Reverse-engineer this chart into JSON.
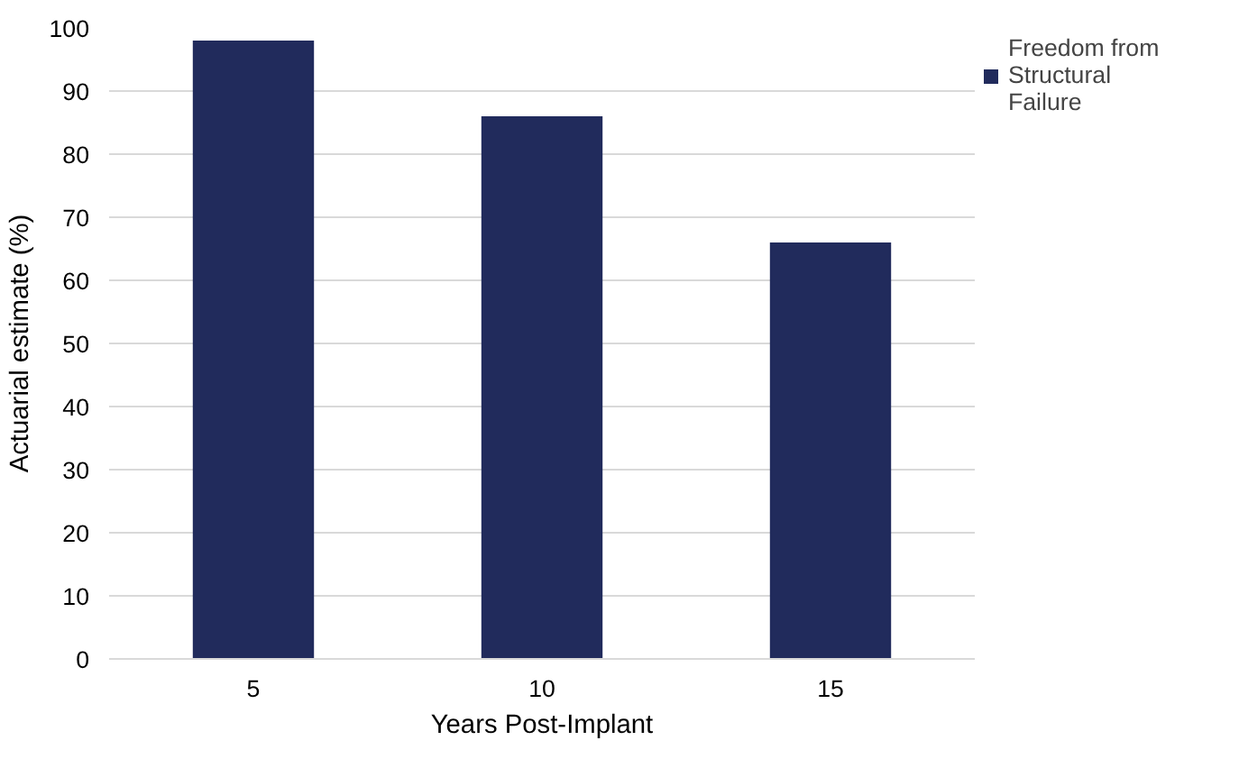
{
  "chart_data": {
    "type": "bar",
    "xlabel": "Years Post-Implant",
    "ylabel": "Actuarial estimate (%)",
    "categories": [
      "5",
      "10",
      "15"
    ],
    "series": [
      {
        "name": "Freedom from Structural Failure",
        "color": "#212b5c",
        "values": [
          98,
          86,
          66
        ]
      }
    ],
    "ylim": [
      0,
      100
    ],
    "yticks": [
      0,
      10,
      20,
      30,
      40,
      50,
      60,
      70,
      80,
      90,
      100
    ],
    "grid": "y",
    "legend": "top right"
  }
}
